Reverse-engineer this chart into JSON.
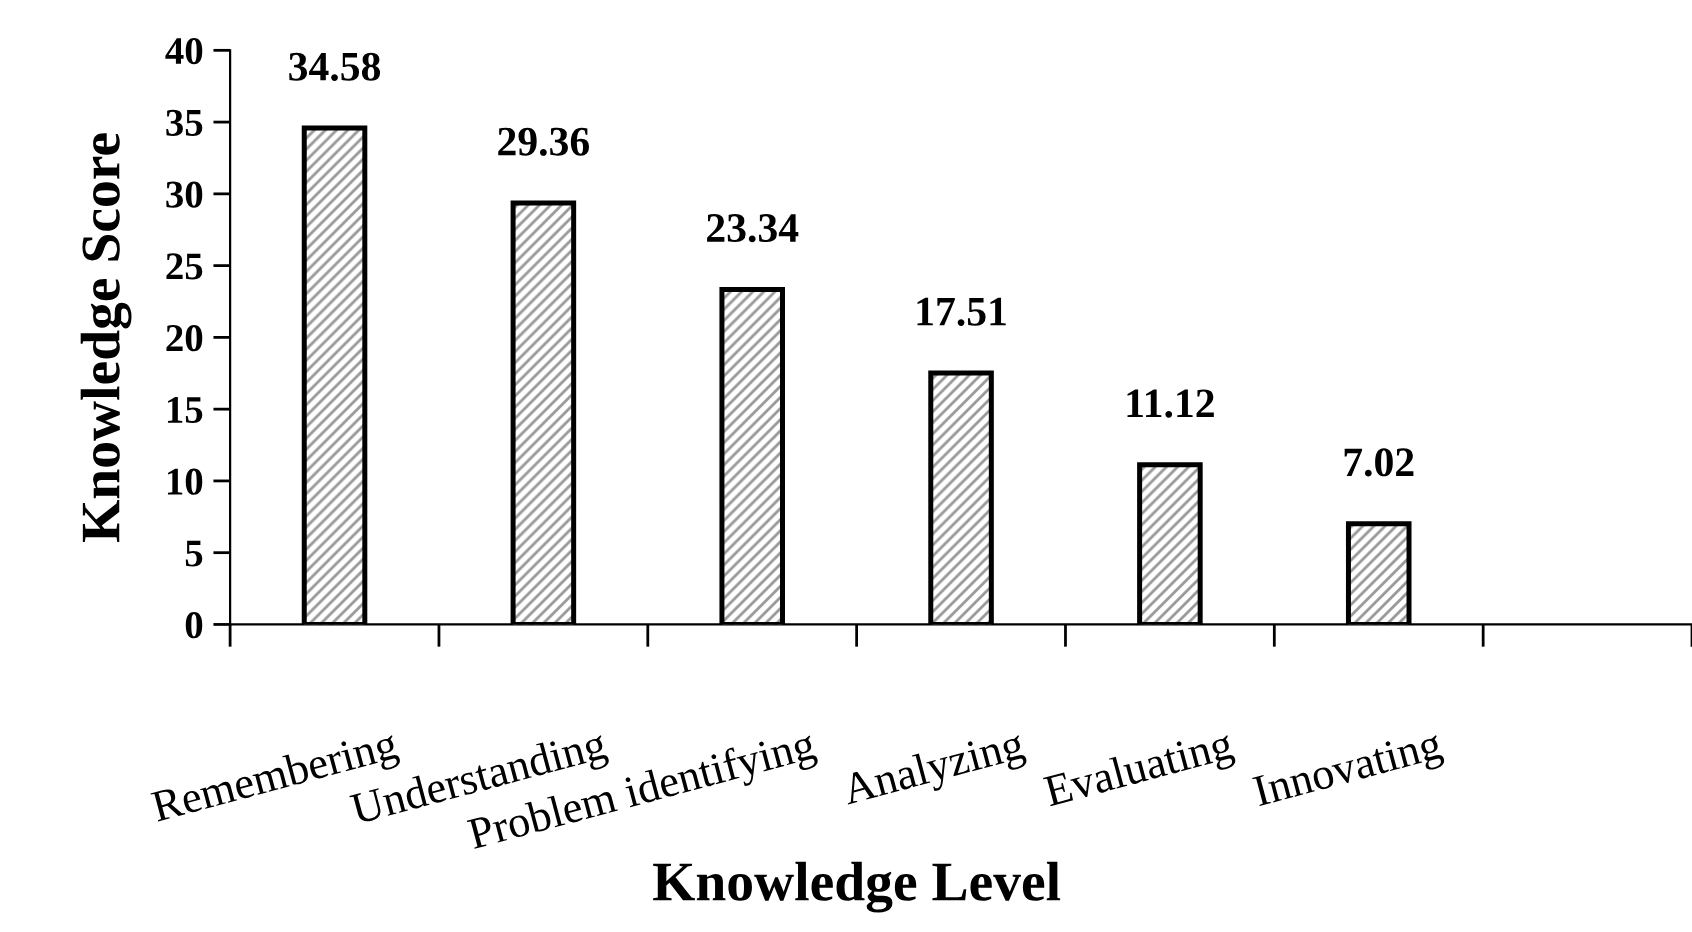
{
  "chart_data": {
    "type": "bar",
    "xlabel": "Knowledge Level",
    "ylabel": "Knowledge Score",
    "categories": [
      "Remembering",
      "Understanding",
      "Problem identifying",
      "Analyzing",
      "Evaluating",
      "Innovating",
      null
    ],
    "values": [
      34.58,
      29.36,
      23.34,
      17.51,
      11.12,
      7.02,
      null
    ],
    "color": "#000000",
    "ylim": [
      0,
      40
    ],
    "yticks": [
      0,
      5,
      10,
      15,
      20,
      25,
      30,
      35,
      40
    ],
    "data_labels": true,
    "grid": false,
    "legend": false
  }
}
